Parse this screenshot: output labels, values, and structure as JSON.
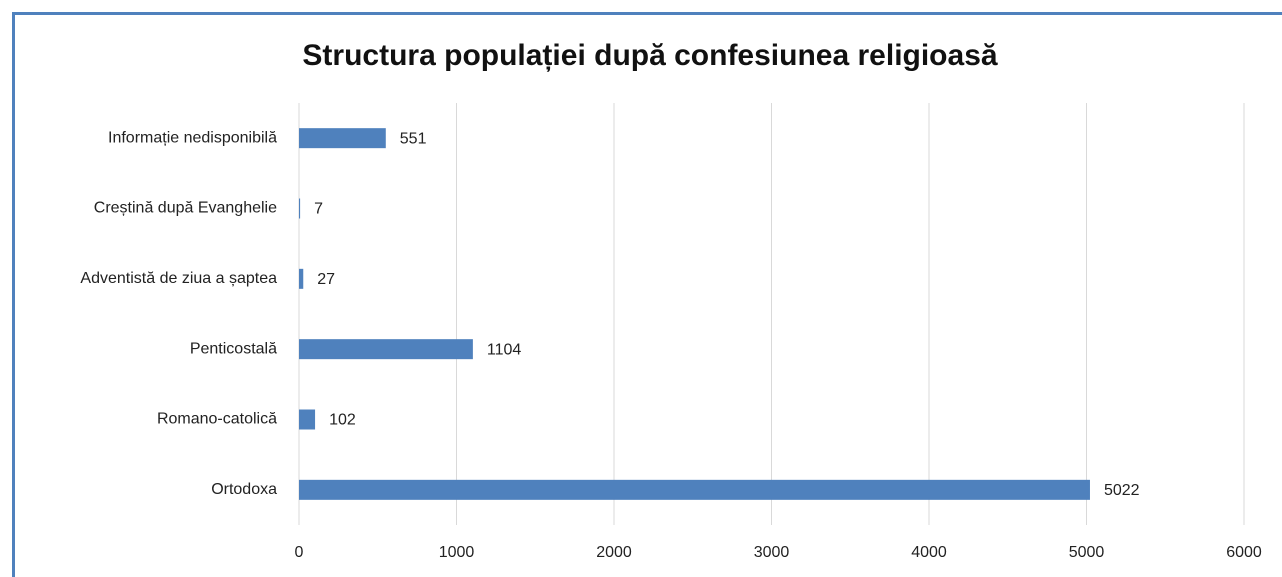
{
  "chart_data": {
    "type": "hbar",
    "title": "Structura populației după confesiunea religioasă",
    "categories": [
      "Ortodoxa",
      "Romano-catolică",
      "Penticostală",
      "Adventistă de ziua a șaptea",
      "Creștină după Evanghelie",
      "Informație nedisponibilă"
    ],
    "values": [
      5022,
      102,
      1104,
      27,
      7,
      551
    ],
    "color": "#4f81bd",
    "xlim": [
      0,
      6000
    ],
    "xticks": [
      0,
      1000,
      2000,
      3000,
      4000,
      5000,
      6000
    ],
    "grid": true
  }
}
